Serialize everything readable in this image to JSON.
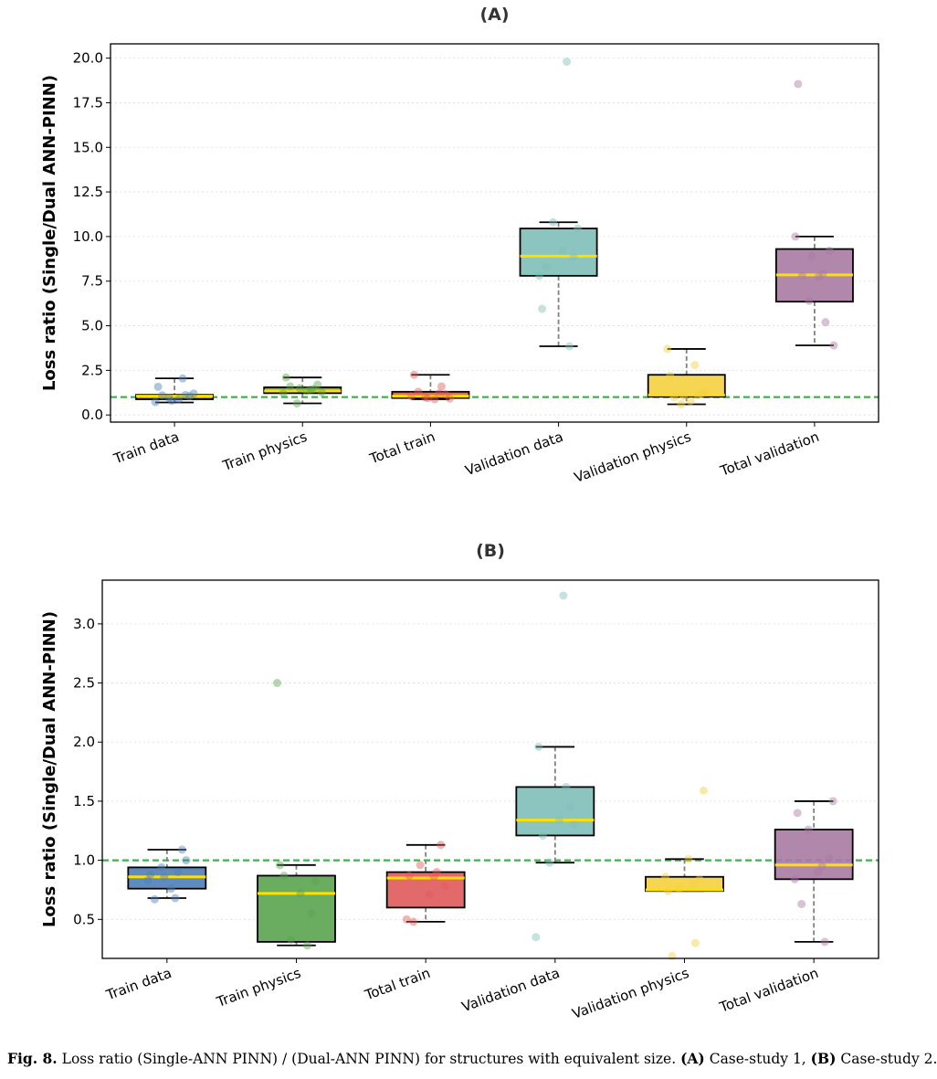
{
  "figure": {
    "caption_label": "Fig. 8.",
    "caption_text": "Loss ratio (Single-ANN PINN) / (Dual-ANN PINN) for structures with equivalent size.",
    "caption_a_tag": "(A)",
    "caption_a_text": "Case-study 1,",
    "caption_b_tag": "(B)",
    "caption_b_text": "Case-study 2."
  },
  "colors": {
    "reference_line": "#3cb44b",
    "median": "#ffe000",
    "whisker": "#808080",
    "box_edge": "#000000"
  },
  "chart_data": [
    {
      "type": "box",
      "title": "(A)",
      "xlabel": "",
      "ylabel": "Loss ratio (Single/Dual ANN-PINN)",
      "ylim": [
        -0.4,
        20.8
      ],
      "yticks": [
        0.0,
        2.5,
        5.0,
        7.5,
        10.0,
        12.5,
        15.0,
        17.5,
        20.0
      ],
      "ytick_labels": [
        "0.0",
        "2.5",
        "5.0",
        "7.5",
        "10.0",
        "12.5",
        "15.0",
        "17.5",
        "20.0"
      ],
      "reference_line": 1.0,
      "grid": "horizontal-dotted",
      "categories": [
        "Train data",
        "Train physics",
        "Total train",
        "Validation data",
        "Validation physics",
        "Total validation"
      ],
      "boxes": [
        {
          "category": "Train data",
          "color": "#4f7fb6",
          "whisker_low": 0.7,
          "q1": 0.88,
          "median": 1.05,
          "q3": 1.13,
          "whisker_high": 2.05,
          "points": [
            1.58,
            1.12,
            0.95,
            1.2,
            1.1,
            0.88,
            1.05,
            0.72,
            2.05,
            0.8
          ]
        },
        {
          "category": "Train physics",
          "color": "#5aa34f",
          "whisker_low": 0.65,
          "q1": 1.22,
          "median": 1.35,
          "q3": 1.55,
          "whisker_high": 2.1,
          "points": [
            2.1,
            1.45,
            0.65,
            1.28,
            1.6,
            1.35,
            1.7,
            1.22,
            1.42,
            1.5
          ]
        },
        {
          "category": "Total train",
          "color": "#e05a5a",
          "whisker_low": 0.88,
          "q1": 0.95,
          "median": 1.05,
          "q3": 1.3,
          "whisker_high": 2.25,
          "points": [
            2.25,
            1.6,
            1.0,
            0.92,
            1.3,
            0.88,
            1.15,
            1.05,
            1.2,
            0.95
          ]
        },
        {
          "category": "Validation data",
          "color": "#7fbfb8",
          "whisker_low": 3.85,
          "q1": 7.8,
          "median": 8.9,
          "q3": 10.45,
          "whisker_high": 10.8,
          "points": [
            5.95,
            3.85,
            10.8,
            10.45,
            8.3,
            9.2,
            8.85,
            7.8,
            19.8
          ]
        },
        {
          "category": "Validation physics",
          "color": "#f5d040",
          "whisker_low": 0.6,
          "q1": 1.02,
          "median": 1.12,
          "q3": 2.25,
          "whisker_high": 3.7,
          "points": [
            2.2,
            1.1,
            0.6,
            1.3,
            1.0,
            0.78,
            1.2,
            3.7,
            2.8,
            1.05
          ]
        },
        {
          "category": "Total validation",
          "color": "#a97aa2",
          "whisker_low": 3.9,
          "q1": 6.35,
          "median": 7.85,
          "q3": 9.3,
          "whisker_high": 10.0,
          "points": [
            18.55,
            5.2,
            6.4,
            3.9,
            7.8,
            7.75,
            9.2,
            10.0,
            7.9,
            8.9
          ]
        }
      ]
    },
    {
      "type": "box",
      "title": "(B)",
      "xlabel": "",
      "ylabel": "Loss ratio (Single/Dual ANN-PINN)",
      "ylim": [
        0.17,
        3.37
      ],
      "yticks": [
        0.5,
        1.0,
        1.5,
        2.0,
        2.5,
        3.0
      ],
      "ytick_labels": [
        "0.5",
        "1.0",
        "1.5",
        "2.0",
        "2.5",
        "3.0"
      ],
      "reference_line": 1.0,
      "grid": "horizontal-dotted",
      "categories": [
        "Train data",
        "Train physics",
        "Total train",
        "Validation data",
        "Validation physics",
        "Total validation"
      ],
      "boxes": [
        {
          "category": "Train data",
          "color": "#4f7fb6",
          "whisker_low": 0.68,
          "q1": 0.76,
          "median": 0.86,
          "q3": 0.94,
          "whisker_high": 1.09,
          "points": [
            0.88,
            0.9,
            0.94,
            1.0,
            0.67,
            0.76,
            1.09,
            0.83,
            0.68,
            0.86
          ]
        },
        {
          "category": "Train physics",
          "color": "#5aa34f",
          "whisker_low": 0.28,
          "q1": 0.31,
          "median": 0.72,
          "q3": 0.87,
          "whisker_high": 0.96,
          "points": [
            0.96,
            0.28,
            0.33,
            0.82,
            0.87,
            0.72,
            0.55,
            2.5
          ]
        },
        {
          "category": "Total train",
          "color": "#e05a5a",
          "whisker_low": 0.48,
          "q1": 0.6,
          "median": 0.85,
          "q3": 0.9,
          "whisker_high": 1.13,
          "points": [
            0.87,
            0.9,
            0.96,
            0.78,
            0.48,
            0.71,
            1.13,
            0.5,
            0.86
          ]
        },
        {
          "category": "Validation data",
          "color": "#7fbfb8",
          "whisker_low": 0.98,
          "q1": 1.21,
          "median": 1.34,
          "q3": 1.62,
          "whisker_high": 1.96,
          "points": [
            1.96,
            1.62,
            0.98,
            1.3,
            1.21,
            1.34,
            1.45,
            0.35,
            3.24
          ]
        },
        {
          "category": "Validation physics",
          "color": "#f5d040",
          "whisker_low": 0.74,
          "q1": 0.74,
          "median": 0.75,
          "q3": 0.86,
          "whisker_high": 1.01,
          "points": [
            0.74,
            0.3,
            0.76,
            1.59,
            0.19,
            1.01,
            0.84,
            0.86,
            0.8
          ]
        },
        {
          "category": "Total validation",
          "color": "#a97aa2",
          "whisker_low": 0.31,
          "q1": 0.84,
          "median": 0.96,
          "q3": 1.26,
          "whisker_high": 1.5,
          "points": [
            1.4,
            0.31,
            1.26,
            1.5,
            0.63,
            0.9,
            1.02,
            0.84,
            0.95
          ]
        }
      ]
    }
  ]
}
